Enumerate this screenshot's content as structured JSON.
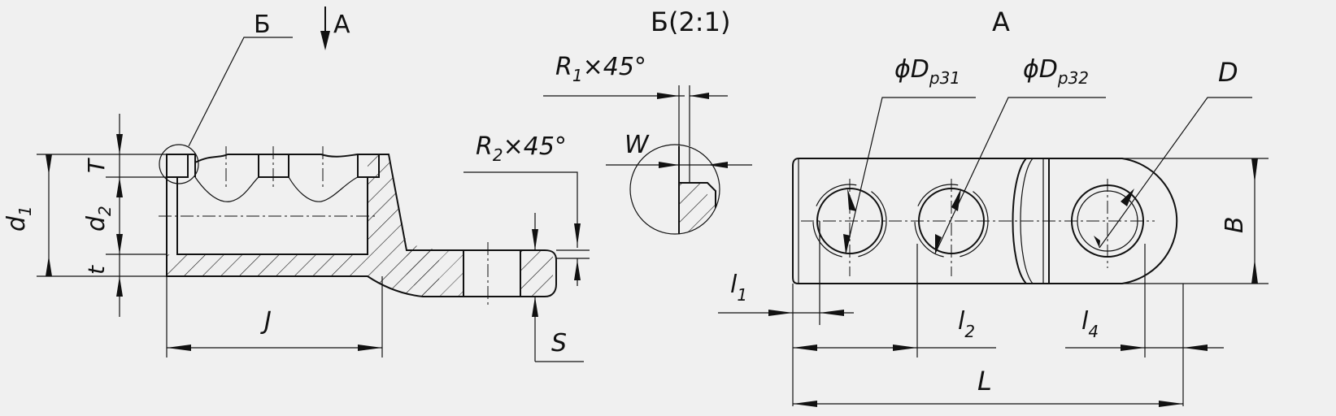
{
  "views": {
    "section_marker": "Б",
    "view_marker": "А",
    "detail_title": "Б(2:1)",
    "view_title": "А"
  },
  "dimensions": {
    "d1": "d1",
    "d2": "d2",
    "T": "T",
    "t": "t",
    "J": "J",
    "S": "S",
    "R1": "R1×45°",
    "R2": "R2×45°",
    "W": "W",
    "Dp31": "ϕDр31",
    "Dp32": "ϕDр32",
    "D": "D",
    "B": "B",
    "l1": "l1",
    "l2": "l2",
    "l4": "l4",
    "L": "L"
  },
  "colors": {
    "background": "#f0f0f0",
    "line": "#111111"
  }
}
